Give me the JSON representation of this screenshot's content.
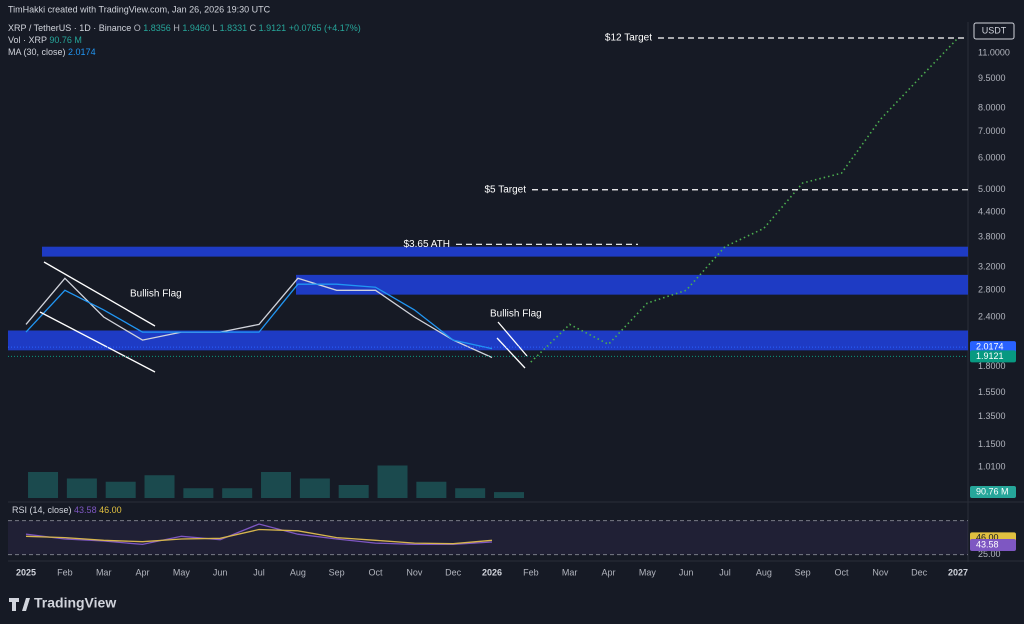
{
  "header": {
    "credit": "TimHakki created with TradingView.com, Jan 26, 2026 19:30 UTC",
    "logo": "TradingView",
    "currency": "USDT"
  },
  "legend": {
    "symbol": "XRP / TetherUS · 1D · Binance",
    "ohlc": [
      "O",
      "1.8356",
      "H",
      "1.9460",
      "L",
      "1.8331",
      "C",
      "1.9121",
      "+0.0765 (+4.17%)"
    ],
    "volume": [
      "Vol · XRP",
      "90.76 M"
    ],
    "ma": [
      "MA (30, close)",
      "2.0174"
    ],
    "rsi": [
      "RSI (14, close)",
      "43.58",
      "46.00"
    ]
  },
  "chart_data": [
    {
      "type": "line",
      "log_scale": true,
      "xlim": [
        "2024-12",
        "2027-01"
      ],
      "xticks": [
        {
          "value": "2025-01",
          "label": "2025"
        },
        {
          "value": "2025-02",
          "label": "Feb"
        },
        {
          "value": "2025-03",
          "label": "Mar"
        },
        {
          "value": "2025-04",
          "label": "Apr"
        },
        {
          "value": "2025-05",
          "label": "May"
        },
        {
          "value": "2025-06",
          "label": "Jun"
        },
        {
          "value": "2025-07",
          "label": "Jul"
        },
        {
          "value": "2025-08",
          "label": "Aug"
        },
        {
          "value": "2025-09",
          "label": "Sep"
        },
        {
          "value": "2025-10",
          "label": "Oct"
        },
        {
          "value": "2025-11",
          "label": "Nov"
        },
        {
          "value": "2025-12",
          "label": "Dec"
        },
        {
          "value": "2026-01",
          "label": "2026"
        },
        {
          "value": "2026-02",
          "label": "Feb"
        },
        {
          "value": "2026-03",
          "label": "Mar"
        },
        {
          "value": "2026-04",
          "label": "Apr"
        },
        {
          "value": "2026-05",
          "label": "May"
        },
        {
          "value": "2026-06",
          "label": "Jun"
        },
        {
          "value": "2026-07",
          "label": "Jul"
        },
        {
          "value": "2026-08",
          "label": "Aug"
        },
        {
          "value": "2026-09",
          "label": "Sep"
        },
        {
          "value": "2026-10",
          "label": "Oct"
        },
        {
          "value": "2026-11",
          "label": "Nov"
        },
        {
          "value": "2026-12",
          "label": "Dec"
        },
        {
          "value": "2027-01",
          "label": "2027"
        }
      ],
      "ylim": [
        0.835,
        13.16
      ],
      "yticks": [
        {
          "value": 11,
          "label": "11.0000"
        },
        {
          "value": 9.5,
          "label": "9.5000"
        },
        {
          "value": 8,
          "label": "8.0000"
        },
        {
          "value": 7,
          "label": "7.0000"
        },
        {
          "value": 6,
          "label": "6.0000"
        },
        {
          "value": 5,
          "label": "5.0000"
        },
        {
          "value": 4.4,
          "label": "4.4000"
        },
        {
          "value": 3.8,
          "label": "3.8000"
        },
        {
          "value": 3.2,
          "label": "3.2000"
        },
        {
          "value": 2.8,
          "label": "2.8000"
        },
        {
          "value": 2.4,
          "label": "2.4000"
        },
        {
          "value": 1.8,
          "label": "1.8000"
        },
        {
          "value": 1.55,
          "label": "1.5500"
        },
        {
          "value": 1.35,
          "label": "1.3500"
        },
        {
          "value": 1.15,
          "label": "1.1500"
        },
        {
          "value": 1.01,
          "label": "1.0100"
        }
      ],
      "series": [
        {
          "color": "#d1d4dc",
          "style": "solid",
          "x": [
            "2025-01",
            "2025-02",
            "2025-03",
            "2025-04",
            "2025-05",
            "2025-06",
            "2025-07",
            "2025-08",
            "2025-09",
            "2025-10",
            "2025-11",
            "2025-12",
            "2026-01"
          ],
          "values": [
            2.3,
            3.0,
            2.4,
            2.1,
            2.2,
            2.2,
            2.3,
            3.0,
            2.8,
            2.8,
            2.4,
            2.1,
            1.9
          ]
        },
        {
          "color": "#2196f3",
          "style": "solid",
          "x": [
            "2025-01",
            "2025-02",
            "2025-03",
            "2025-04",
            "2025-05",
            "2025-06",
            "2025-07",
            "2025-08",
            "2025-09",
            "2025-10",
            "2025-11",
            "2025-12",
            "2026-01"
          ],
          "values": [
            2.2,
            2.8,
            2.5,
            2.2,
            2.2,
            2.2,
            2.2,
            2.9,
            2.9,
            2.85,
            2.5,
            2.1,
            2.0
          ]
        },
        {
          "color": "#4caf50",
          "style": "dotted",
          "x": [
            "2026-02",
            "2026-03",
            "2026-04",
            "2026-05",
            "2026-06",
            "2026-07",
            "2026-08",
            "2026-09",
            "2026-10",
            "2026-11",
            "2026-12",
            "2027-01"
          ],
          "values": [
            1.85,
            2.3,
            2.05,
            2.6,
            2.8,
            3.6,
            4.0,
            5.2,
            5.5,
            7.5,
            9.5,
            12.0
          ]
        }
      ],
      "zones": [
        {
          "low": 3.4,
          "high": 3.6,
          "color": "#1f3fd6"
        },
        {
          "low": 2.73,
          "high": 3.06,
          "color": "#1f3fd6"
        },
        {
          "low": 1.98,
          "high": 2.22,
          "color": "#1f3fd6"
        }
      ],
      "levels": [
        {
          "label": "$12 Target",
          "value": 12
        },
        {
          "label": "$5 Target",
          "value": 5
        },
        {
          "label": "$3.65 ATH",
          "value": 3.65
        }
      ],
      "annotations": [
        "Bullish Flag",
        "Bullish Flag"
      ],
      "last_values": [
        {
          "value": 2.0174,
          "color": "#2962ff"
        },
        {
          "value": 1.9121,
          "color": "#089981"
        }
      ]
    },
    {
      "type": "bar",
      "x": [
        "2025-01",
        "2025-02",
        "2025-03",
        "2025-04",
        "2025-05",
        "2025-06",
        "2025-07",
        "2025-08",
        "2025-09",
        "2025-10",
        "2025-11",
        "2025-12",
        "2026-01"
      ],
      "values": [
        400,
        300,
        250,
        350,
        150,
        150,
        400,
        300,
        200,
        500,
        250,
        150,
        90.76
      ],
      "ylim": [
        0,
        1200
      ],
      "color": "#26a69a"
    },
    {
      "type": "line",
      "x": [
        "2025-01",
        "2025-02",
        "2025-03",
        "2025-04",
        "2025-05",
        "2025-06",
        "2025-07",
        "2025-08",
        "2025-09",
        "2025-10",
        "2025-11",
        "2025-12",
        "2026-01"
      ],
      "series": [
        {
          "color": "#7e57c2",
          "values": [
            55,
            48,
            45,
            40,
            52,
            47,
            70,
            55,
            48,
            42,
            40,
            40,
            43.58
          ]
        },
        {
          "color": "#e0c040",
          "values": [
            52,
            50,
            46,
            44,
            48,
            49,
            62,
            60,
            50,
            46,
            42,
            41,
            46
          ]
        }
      ],
      "ylim": [
        20,
        98
      ],
      "bands": [
        75,
        25
      ],
      "yticks": [
        {
          "value": 25,
          "label": "25.00"
        }
      ],
      "last_values": [
        {
          "value": 46,
          "label": "46.00",
          "color": "#e0c040"
        },
        {
          "value": 43.58,
          "color": "#7e57c2"
        }
      ]
    }
  ]
}
